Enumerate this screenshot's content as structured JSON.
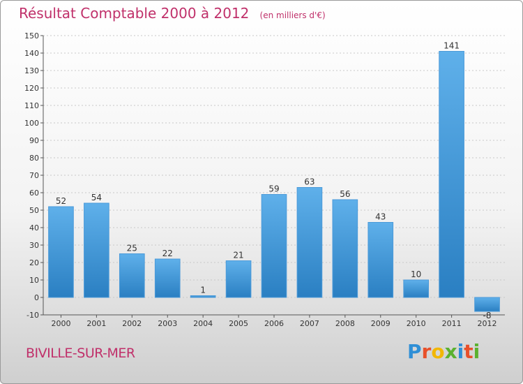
{
  "header": {
    "title": "Résultat Comptable 2000 à 2012",
    "subtitle": "(en milliers d'€)"
  },
  "footer": {
    "town": "BIVILLE-SUR-MER",
    "logo_letters": [
      {
        "ch": "P",
        "color": "#2f8fd6"
      },
      {
        "ch": "r",
        "color": "#e8502a"
      },
      {
        "ch": "o",
        "color": "#f2b705"
      },
      {
        "ch": "x",
        "color": "#5bb12f"
      },
      {
        "ch": "i",
        "color": "#2f8fd6"
      },
      {
        "ch": "t",
        "color": "#e8502a"
      },
      {
        "ch": "i",
        "color": "#5bb12f"
      }
    ]
  },
  "colors": {
    "bar_top": "#5fb0ea",
    "bar_bottom": "#2a7fc2",
    "axis": "#555555",
    "grid": "#c8c8c8",
    "label": "#333333"
  },
  "chart_data": {
    "type": "bar",
    "categories": [
      "2000",
      "2001",
      "2002",
      "2003",
      "2004",
      "2005",
      "2006",
      "2007",
      "2008",
      "2009",
      "2010",
      "2011",
      "2012"
    ],
    "values": [
      52,
      54,
      25,
      22,
      1,
      21,
      59,
      63,
      56,
      43,
      10,
      141,
      -8
    ],
    "data_labels": [
      "52",
      "54",
      "25",
      "22",
      "1",
      "21",
      "59",
      "63",
      "56",
      "43",
      "10",
      "141",
      "-8"
    ],
    "ylim": [
      -10,
      150
    ],
    "yticks": [
      -10,
      0,
      10,
      20,
      30,
      40,
      50,
      60,
      70,
      80,
      90,
      100,
      110,
      120,
      130,
      140,
      150
    ],
    "grid": true,
    "legend": "none"
  }
}
